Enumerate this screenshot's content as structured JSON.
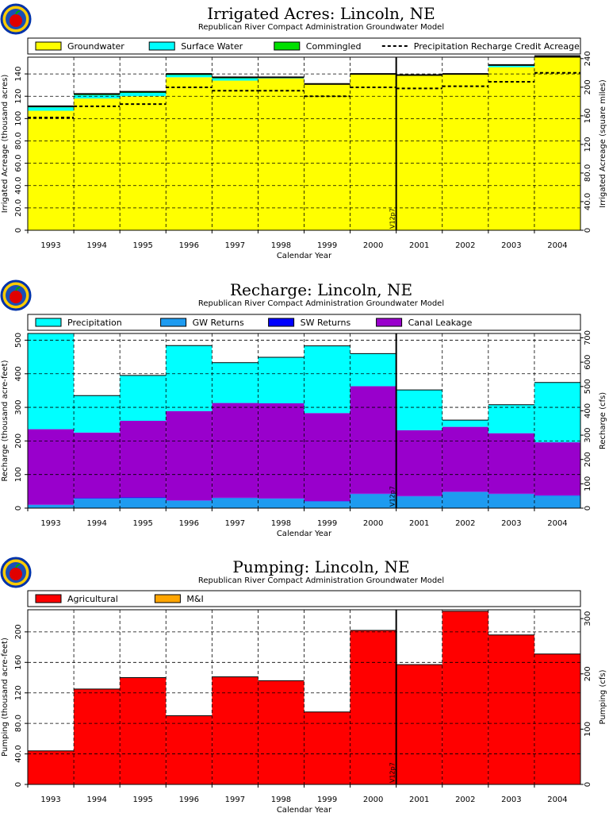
{
  "chart_data": [
    {
      "type": "area",
      "title": "Irrigated Acres: Lincoln, NE",
      "subtitle": "Republican River Compact Administration Groundwater Model",
      "xlabel": "Calendar Year",
      "ylabel": "Irrigated Acreage (thousand acres)",
      "y2label": "Irrigated Acreage (square miles)",
      "categories": [
        "1993",
        "1994",
        "1995",
        "1996",
        "1997",
        "1998",
        "1999",
        "2000",
        "2001",
        "2002",
        "2003",
        "2004"
      ],
      "ylim": [
        0,
        155
      ],
      "yticks": [
        "0",
        "20.0",
        "40.0",
        "60.0",
        "80.0",
        "100",
        "120",
        "140"
      ],
      "y2lim": [
        0,
        242
      ],
      "y2ticks": [
        "0",
        "40.0",
        "80.0",
        "120",
        "160",
        "200",
        "240"
      ],
      "marker": "V12p7",
      "series": [
        {
          "name": "Groundwater",
          "color": "#ffff00",
          "values": [
            107,
            118,
            120,
            137,
            134,
            136,
            131,
            140,
            139,
            140,
            146,
            155
          ]
        },
        {
          "name": "Surface Water",
          "color": "#00ffff",
          "values": [
            3,
            3,
            3,
            2,
            2,
            1,
            0,
            0,
            0,
            0,
            2,
            1
          ]
        },
        {
          "name": "Commingled",
          "color": "#00e000",
          "values": [
            1,
            1,
            1,
            1,
            1,
            0,
            0,
            0,
            0,
            0,
            0,
            0
          ]
        }
      ],
      "line_series": {
        "name": "Precipitation Recharge Credit Acreage",
        "values": [
          101,
          111,
          113,
          128,
          125,
          125,
          120,
          128,
          127,
          129,
          133,
          141
        ]
      }
    },
    {
      "type": "area",
      "title": "Recharge: Lincoln, NE",
      "subtitle": "Republican River Compact Administration Groundwater Model",
      "xlabel": "Calendar Year",
      "ylabel": "Recharge (thousand acre-feet)",
      "y2label": "Recharge (cfs)",
      "categories": [
        "1993",
        "1994",
        "1995",
        "1996",
        "1997",
        "1998",
        "1999",
        "2000",
        "2001",
        "2002",
        "2003",
        "2004"
      ],
      "ylim": [
        0,
        520
      ],
      "yticks": [
        "0",
        "100",
        "200",
        "300",
        "400",
        "500"
      ],
      "y2lim": [
        0,
        718
      ],
      "y2ticks": [
        "0",
        "100",
        "200",
        "300",
        "400",
        "500",
        "600",
        "700"
      ],
      "marker": "V12p7",
      "series": [
        {
          "name": "GW Returns",
          "color": "#1e9bf0",
          "values": [
            10,
            28,
            30,
            22,
            30,
            28,
            20,
            42,
            35,
            48,
            42,
            37
          ]
        },
        {
          "name": "SW Returns",
          "color": "#0000ff",
          "values": [
            0,
            2,
            2,
            1,
            1,
            1,
            1,
            1,
            1,
            1,
            1,
            1
          ]
        },
        {
          "name": "Canal Leakage",
          "color": "#9900cc",
          "values": [
            225,
            195,
            228,
            266,
            282,
            283,
            262,
            320,
            196,
            193,
            180,
            158
          ]
        },
        {
          "name": "Precipitation",
          "color": "#00ffff",
          "values": [
            285,
            110,
            135,
            195,
            120,
            137,
            200,
            97,
            120,
            20,
            85,
            178
          ]
        }
      ]
    },
    {
      "type": "area",
      "title": "Pumping: Lincoln, NE",
      "subtitle": "Republican River Compact Administration Groundwater Model",
      "xlabel": "Calendar Year",
      "ylabel": "Pumping (thousand acre-feet)",
      "y2label": "Pumping (cfs)",
      "categories": [
        "1993",
        "1994",
        "1995",
        "1996",
        "1997",
        "1998",
        "1999",
        "2000",
        "2001",
        "2002",
        "2003",
        "2004"
      ],
      "ylim": [
        0,
        229
      ],
      "yticks": [
        "0",
        "40.0",
        "80.0",
        "120",
        "160",
        "200"
      ],
      "y2lim": [
        0,
        316
      ],
      "y2ticks": [
        "0",
        "100",
        "200",
        "300"
      ],
      "marker": "V12p7",
      "series": [
        {
          "name": "Agricultural",
          "color": "#ff0000",
          "values": [
            44,
            125,
            140,
            90,
            141,
            136,
            95,
            202,
            157,
            227,
            196,
            171
          ]
        },
        {
          "name": "M&I",
          "color": "#ffa500",
          "values": [
            0,
            0,
            0,
            0,
            0,
            0,
            0,
            0,
            0,
            0,
            0,
            0
          ]
        }
      ]
    }
  ]
}
